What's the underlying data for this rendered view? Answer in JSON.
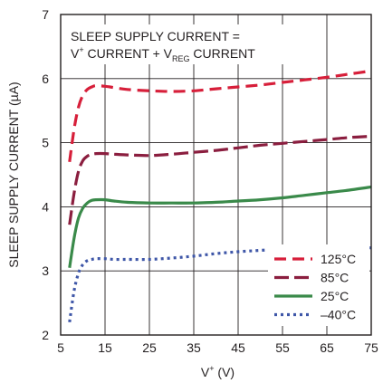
{
  "chart_data": {
    "type": "line",
    "xlabel_main": "V",
    "xlabel_sup": "+",
    "xlabel_unit": " (V)",
    "ylabel": "SLEEP SUPPLY CURRENT (µA)",
    "xlim": [
      5,
      75
    ],
    "ylim": [
      2,
      7
    ],
    "xticks": [
      5,
      15,
      25,
      35,
      45,
      55,
      65,
      75
    ],
    "yticks": [
      2,
      3,
      4,
      5,
      6,
      7
    ],
    "grid": true,
    "legend_position": "bottom-right",
    "annotation": {
      "line1": "SLEEP SUPPLY CURRENT =",
      "line2_a": "V",
      "line2_sup": "+",
      "line2_b": " CURRENT + V",
      "line2_sub": "REG",
      "line2_c": " CURRENT"
    },
    "series": [
      {
        "name": "125°C",
        "color": "#d71f3a",
        "dash": "dash",
        "x": [
          7,
          8,
          9,
          10,
          11,
          12,
          13,
          15,
          17,
          20,
          25,
          30,
          35,
          40,
          45,
          50,
          55,
          60,
          65,
          70,
          75
        ],
        "y": [
          4.7,
          5.2,
          5.55,
          5.74,
          5.83,
          5.87,
          5.89,
          5.88,
          5.86,
          5.83,
          5.81,
          5.8,
          5.81,
          5.84,
          5.87,
          5.9,
          5.94,
          5.98,
          6.02,
          6.07,
          6.12
        ]
      },
      {
        "name": "85°C",
        "color": "#8b1e3f",
        "dash": "longdash",
        "x": [
          7,
          8,
          9,
          10,
          11,
          12,
          13,
          15,
          17,
          20,
          25,
          30,
          35,
          40,
          45,
          50,
          55,
          60,
          65,
          70,
          75
        ],
        "y": [
          3.72,
          4.2,
          4.55,
          4.72,
          4.79,
          4.82,
          4.83,
          4.83,
          4.82,
          4.81,
          4.8,
          4.82,
          4.85,
          4.88,
          4.92,
          4.96,
          4.99,
          5.02,
          5.05,
          5.08,
          5.1
        ]
      },
      {
        "name": "25°C",
        "color": "#3a8a4a",
        "dash": "solid",
        "x": [
          7,
          8,
          9,
          10,
          11,
          12,
          13,
          15,
          17,
          20,
          25,
          30,
          35,
          40,
          45,
          50,
          55,
          60,
          65,
          70,
          75
        ],
        "y": [
          3.05,
          3.5,
          3.82,
          3.98,
          4.06,
          4.1,
          4.11,
          4.11,
          4.09,
          4.07,
          4.06,
          4.06,
          4.06,
          4.07,
          4.09,
          4.11,
          4.14,
          4.18,
          4.22,
          4.26,
          4.31
        ]
      },
      {
        "name": "–40°C",
        "color": "#3f57a8",
        "dash": "dot",
        "x": [
          7,
          8,
          9,
          10,
          11,
          12,
          13,
          15,
          17,
          20,
          25,
          30,
          35,
          40,
          45,
          50,
          55,
          60,
          65,
          70,
          75
        ],
        "y": [
          2.2,
          2.68,
          2.96,
          3.1,
          3.16,
          3.18,
          3.19,
          3.19,
          3.18,
          3.18,
          3.18,
          3.2,
          3.23,
          3.27,
          3.3,
          3.32,
          3.34,
          3.35,
          3.36,
          3.36,
          3.36
        ]
      }
    ]
  }
}
